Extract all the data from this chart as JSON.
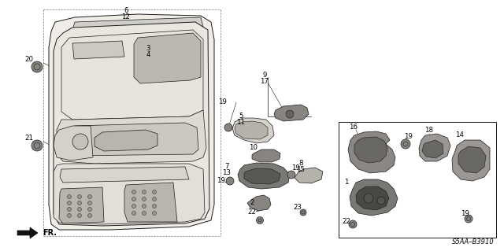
{
  "bg_color": "#ffffff",
  "diagram_code": "S5AA–B3910",
  "line_color": "#1a1a1a",
  "text_color": "#000000",
  "fig_w": 6.4,
  "fig_h": 3.19,
  "dpi": 100
}
